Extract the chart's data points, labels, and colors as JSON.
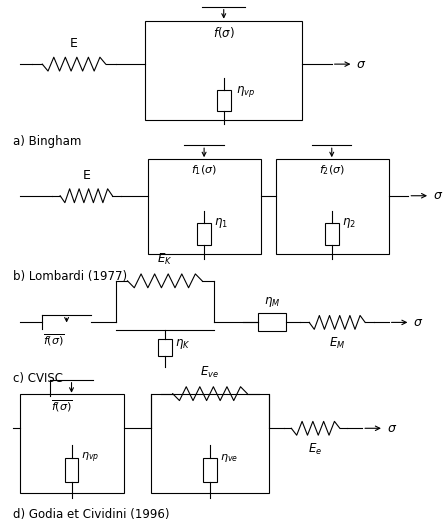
{
  "bg_color": "#ffffff",
  "line_color": "#000000",
  "labels": {
    "a": "a) Bingham",
    "b": "b) Lombardi (1977)",
    "c": "c) CVISC",
    "d": "d) Godia et Cividini (1996)"
  },
  "figsize": [
    4.48,
    5.32
  ],
  "dpi": 100
}
